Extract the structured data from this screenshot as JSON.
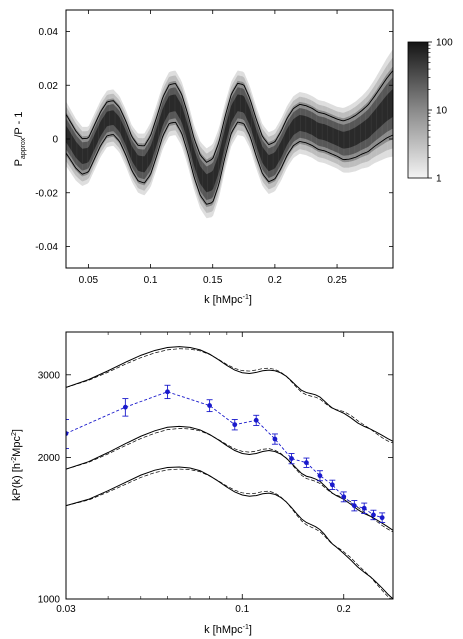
{
  "chart_data": [
    {
      "type": "heatmap",
      "title": "",
      "xlabel_main": "k [hMpc",
      "xlabel_sup": "-1",
      "xlabel_close": "]",
      "ylabel_main": "P",
      "ylabel_sub": "approx",
      "ylabel_rest": "/P - 1",
      "xlim": [
        0.032,
        0.295
      ],
      "ylim": [
        -0.048,
        0.048
      ],
      "xticks": [
        0.05,
        0.1,
        0.15,
        0.2,
        0.25
      ],
      "xtick_labels": [
        "0.05",
        "0.1",
        "0.15",
        "0.2",
        "0.25"
      ],
      "yticks": [
        -0.04,
        -0.02,
        0,
        0.02,
        0.04
      ],
      "ytick_labels": [
        "-0.04",
        "-0.02",
        "0",
        "0.02",
        "0.04"
      ],
      "colorbar": {
        "scale": "log",
        "range": [
          1,
          100
        ],
        "tick_values": [
          1,
          10,
          100
        ],
        "tick_labels": [
          "1",
          "10",
          "100"
        ]
      },
      "band": {
        "x": [
          0.032,
          0.04,
          0.045,
          0.05,
          0.055,
          0.06,
          0.065,
          0.07,
          0.075,
          0.08,
          0.085,
          0.09,
          0.095,
          0.1,
          0.105,
          0.11,
          0.115,
          0.12,
          0.125,
          0.13,
          0.135,
          0.14,
          0.145,
          0.15,
          0.155,
          0.16,
          0.165,
          0.17,
          0.175,
          0.18,
          0.185,
          0.19,
          0.195,
          0.2,
          0.205,
          0.21,
          0.215,
          0.22,
          0.225,
          0.23,
          0.235,
          0.24,
          0.245,
          0.25,
          0.255,
          0.26,
          0.265,
          0.27,
          0.275,
          0.28,
          0.285,
          0.29,
          0.295
        ],
        "center": [
          0.002,
          -0.004,
          -0.0065,
          -0.006,
          -0.001,
          0.004,
          0.0075,
          0.008,
          0.0055,
          0.0005,
          -0.0055,
          -0.009,
          -0.0095,
          -0.006,
          0.001,
          0.0085,
          0.013,
          0.0135,
          0.0095,
          0.002,
          -0.007,
          -0.0135,
          -0.0165,
          -0.0155,
          -0.009,
          0.001,
          0.0095,
          0.0135,
          0.013,
          0.008,
          0.0005,
          -0.006,
          -0.009,
          -0.008,
          -0.004,
          0.001,
          0.0045,
          0.006,
          0.0055,
          0.0045,
          0.003,
          0.0025,
          0.0015,
          0.0005,
          -0.0005,
          0.0,
          0.001,
          0.0025,
          0.004,
          0.0065,
          0.009,
          0.0115,
          0.0135
        ],
        "halfwidth": [
          0.012,
          0.0115,
          0.011,
          0.0105,
          0.0105,
          0.0105,
          0.0105,
          0.0105,
          0.0105,
          0.0105,
          0.0105,
          0.011,
          0.0115,
          0.012,
          0.012,
          0.012,
          0.012,
          0.012,
          0.012,
          0.012,
          0.012,
          0.0125,
          0.013,
          0.0135,
          0.013,
          0.0125,
          0.012,
          0.012,
          0.012,
          0.0115,
          0.0115,
          0.0115,
          0.0115,
          0.0115,
          0.0115,
          0.0115,
          0.0115,
          0.0115,
          0.0115,
          0.0115,
          0.0115,
          0.0115,
          0.0115,
          0.0115,
          0.012,
          0.0125,
          0.013,
          0.0135,
          0.0145,
          0.0155,
          0.017,
          0.0185,
          0.02
        ]
      }
    },
    {
      "type": "line",
      "title": "",
      "xlabel_main": "k [hMpc",
      "xlabel_sup": "-1",
      "xlabel_close": "]",
      "ylabel_main": "kP(k) [h",
      "ylabel_sup1": "-2",
      "ylabel_mid": "Mpc",
      "ylabel_sup2": "2",
      "ylabel_close": "]",
      "xscale": "log",
      "yscale": "log",
      "xlim": [
        0.03,
        0.28
      ],
      "ylim": [
        1000,
        3700
      ],
      "xticks": [
        0.03,
        0.1,
        0.2
      ],
      "xtick_labels": [
        "0.03",
        "0.1",
        "0.2"
      ],
      "yticks": [
        1000,
        2000,
        3000
      ],
      "ytick_labels": [
        "1000",
        "2000",
        "3000"
      ],
      "k_grid": [
        0.03,
        0.035,
        0.04,
        0.045,
        0.05,
        0.055,
        0.06,
        0.065,
        0.07,
        0.075,
        0.08,
        0.085,
        0.09,
        0.095,
        0.1,
        0.105,
        0.11,
        0.115,
        0.12,
        0.125,
        0.13,
        0.135,
        0.14,
        0.145,
        0.15,
        0.155,
        0.16,
        0.165,
        0.17,
        0.175,
        0.18,
        0.185,
        0.19,
        0.195,
        0.2,
        0.21,
        0.22,
        0.23,
        0.24,
        0.25,
        0.26,
        0.27,
        0.28
      ],
      "series": [
        {
          "style": "solid-dashed-pair",
          "values": [
            2820,
            2930,
            3060,
            3190,
            3300,
            3380,
            3430,
            3445,
            3430,
            3390,
            3320,
            3230,
            3140,
            3070,
            3030,
            3020,
            3035,
            3060,
            3070,
            3060,
            3030,
            2980,
            2910,
            2840,
            2780,
            2750,
            2735,
            2720,
            2690,
            2640,
            2590,
            2550,
            2525,
            2505,
            2485,
            2430,
            2370,
            2330,
            2300,
            2265,
            2230,
            2195,
            2165
          ]
        },
        {
          "style": "solid-dashed-pair",
          "values": [
            1890,
            1960,
            2050,
            2140,
            2220,
            2280,
            2320,
            2330,
            2320,
            2290,
            2240,
            2180,
            2120,
            2070,
            2040,
            2030,
            2040,
            2060,
            2070,
            2060,
            2035,
            1995,
            1945,
            1895,
            1850,
            1825,
            1815,
            1800,
            1780,
            1745,
            1710,
            1680,
            1660,
            1645,
            1630,
            1590,
            1550,
            1520,
            1500,
            1475,
            1450,
            1425,
            1400
          ]
        },
        {
          "style": "solid-dashed-pair",
          "values": [
            1580,
            1630,
            1700,
            1770,
            1835,
            1880,
            1905,
            1910,
            1900,
            1875,
            1830,
            1780,
            1730,
            1690,
            1665,
            1655,
            1660,
            1675,
            1680,
            1670,
            1645,
            1610,
            1565,
            1520,
            1480,
            1455,
            1440,
            1425,
            1405,
            1375,
            1340,
            1310,
            1290,
            1270,
            1250,
            1210,
            1170,
            1140,
            1115,
            1085,
            1055,
            1025,
            1000
          ]
        }
      ],
      "measurements": {
        "color": "#1a1acc",
        "k": [
          0.03,
          0.045,
          0.06,
          0.08,
          0.095,
          0.11,
          0.125,
          0.14,
          0.155,
          0.17,
          0.185,
          0.2,
          0.215,
          0.23,
          0.245,
          0.26
        ],
        "values": [
          2250,
          2560,
          2760,
          2580,
          2350,
          2400,
          2190,
          1990,
          1950,
          1830,
          1750,
          1650,
          1580,
          1560,
          1510,
          1490
        ],
        "errors": [
          160,
          110,
          90,
          75,
          60,
          60,
          55,
          50,
          45,
          45,
          40,
          40,
          40,
          40,
          35,
          35
        ]
      }
    }
  ]
}
